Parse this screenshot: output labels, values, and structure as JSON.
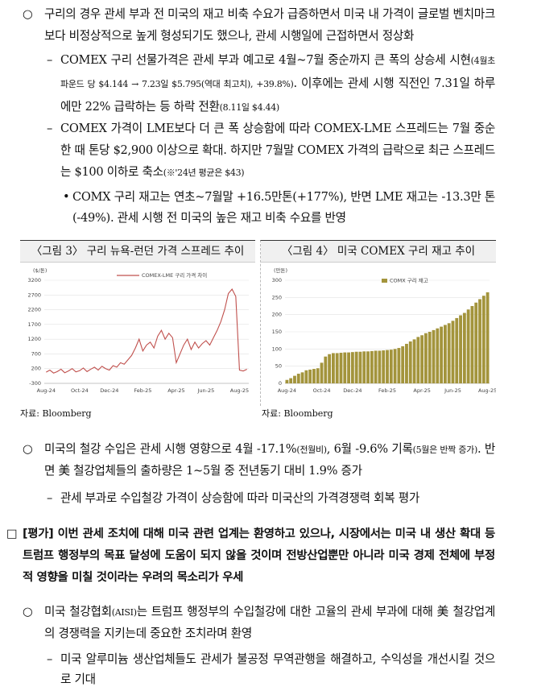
{
  "paragraphs": [
    {
      "marker": "○",
      "runs": [
        {
          "text": "구리의 경우 관세 부과 전 미국의 재고 비축 수요가 급증하면서 미국 내 가격이 글로벌 벤치마크보다 비정상적으로 높게 형성되기도 했으나, 관세 시행일에 근접하면서 정상화"
        }
      ]
    },
    {
      "marker": "–",
      "runs": [
        {
          "text": "COMEX 구리 선물가격은 관세 부과 예고로 4월~7월 중순까지 큰 폭의 상승세 시현"
        },
        {
          "text": "(4월초 파운드 당 $4.144 → 7.23일 $5.795(역대 최고치), +39.8%)",
          "small": true
        },
        {
          "text": ". 이후에는 관세 시행 직전인 7.31일 하루에만 22% 급락하는 등 하락 전환"
        },
        {
          "text": "(8.11일 $4.44)",
          "small": true
        }
      ]
    },
    {
      "marker": "–",
      "runs": [
        {
          "text": "COMEX 가격이 LME보다 더 큰 폭 상승함에 따라 COMEX-LME 스프레드는 7월 중순 한 때 톤당 $2,900 이상으로 확대. 하지만 7월말 COMEX 가격의 급락으로 최근 스프레드는 $100 이하로 축소"
        },
        {
          "text": "(※'24년 평균은 $43)",
          "small": true
        }
      ]
    },
    {
      "marker": "•",
      "runs": [
        {
          "text": "COMX 구리 재고는 연초~7월말 +16.5만톤(+177%), 반면 LME 재고는 -13.3만 톤(-49%). 관세 시행 전 미국의 높은 재고 비축 수요를 반영"
        }
      ]
    },
    {
      "marker": "○",
      "runs": [
        {
          "text": "미국의 철강 수입은 관세 시행 영향으로 4월 -17.1%"
        },
        {
          "text": "(전월비)",
          "small": true
        },
        {
          "text": ", 6월 -9.6% 기록"
        },
        {
          "text": "(5월은 반짝 증가)",
          "small": true
        },
        {
          "text": ". 반면 美 철강업체들의 출하량은 1~5월 중 전년동기 대비 1.9% 증가"
        }
      ]
    },
    {
      "marker": "–",
      "runs": [
        {
          "text": "관세 부과로 수입철강 가격이 상승함에 따라 미국산의 가격경쟁력 회복 평가"
        }
      ]
    },
    {
      "marker": "□",
      "runs": [
        {
          "text": "[평가] 이번 관세 조치에 대해 미국 관련 업계는 환영하고 있으나, 시장에서는 미국 내 생산 확대 등 트럼프 행정부의 목표 달성에 도움이 되지 않을 것이며 전방산업뿐만 아니라 미국 경제 전체에 부정적 영향을 미칠 것이라는 우려의 목소리가 우세"
        }
      ]
    },
    {
      "marker": "○",
      "runs": [
        {
          "text": "미국 철강협회"
        },
        {
          "text": "(AISI)",
          "small": true
        },
        {
          "text": "는 트럼프 행정부의 수입철강에 대한 고율의 관세 부과에 대해 美 철강업계의 경쟁력을 지키는데 중요한 조치라며 환영"
        }
      ]
    },
    {
      "marker": "–",
      "runs": [
        {
          "text": "미국 알루미늄 생산업체들도 관세가 불공정 무역관행을 해결하고, 수익성을 개선시킬 것으로 기대"
        }
      ]
    }
  ],
  "chart_data": [
    {
      "type": "line",
      "title": "〈그림 3〉 구리 뉴욕-런던 가격 스프레드 추이",
      "source": "자료: Bloomberg",
      "y_label": "($/톤)",
      "categories": [
        "Aug-24",
        null,
        null,
        null,
        null,
        null,
        null,
        null,
        null,
        "Oct-24",
        null,
        null,
        null,
        null,
        null,
        null,
        null,
        "Dec-24",
        null,
        null,
        null,
        null,
        null,
        null,
        null,
        null,
        "Feb-25",
        null,
        null,
        null,
        null,
        null,
        null,
        null,
        null,
        "Apr-25",
        null,
        null,
        null,
        null,
        null,
        null,
        null,
        "Jun-25",
        null,
        null,
        null,
        null,
        null,
        null,
        null,
        null,
        "Aug-25",
        null,
        null
      ],
      "series": [
        {
          "name": "COMEX-LME 구리 가격 차이",
          "color": "#c0504d",
          "values": [
            80,
            150,
            50,
            100,
            180,
            60,
            120,
            200,
            90,
            130,
            220,
            100,
            180,
            250,
            150,
            280,
            200,
            150,
            300,
            250,
            400,
            350,
            500,
            650,
            900,
            1200,
            800,
            1000,
            1100,
            900,
            1300,
            1500,
            1200,
            1400,
            1250,
            400,
            700,
            1000,
            1200,
            850,
            1100,
            900,
            1050,
            1150,
            1000,
            1250,
            1500,
            1800,
            2200,
            2750,
            2900,
            2650,
            150,
            120,
            180
          ]
        }
      ],
      "ylim": [
        -300,
        3200
      ],
      "yticks": [
        -300,
        200,
        700,
        1200,
        1700,
        2200,
        2700,
        3200
      ],
      "grid": true
    },
    {
      "type": "bar",
      "title": "〈그림 4〉 미국 COMEX 구리 재고 추이",
      "source": "자료: Bloomberg",
      "y_label": "(만톤)",
      "categories": [
        "Aug-24",
        null,
        null,
        null,
        null,
        null,
        null,
        null,
        null,
        "Oct-24",
        null,
        null,
        null,
        null,
        null,
        null,
        null,
        "Dec-24",
        null,
        null,
        null,
        null,
        null,
        null,
        null,
        null,
        "Feb-25",
        null,
        null,
        null,
        null,
        null,
        null,
        null,
        null,
        "Apr-25",
        null,
        null,
        null,
        null,
        null,
        null,
        null,
        "Jun-25",
        null,
        null,
        null,
        null,
        null,
        null,
        null,
        null,
        "Aug-25"
      ],
      "series": [
        {
          "name": "COMX 구리 재고",
          "color": "#a3943c",
          "values": [
            10,
            15,
            22,
            28,
            32,
            38,
            40,
            42,
            44,
            60,
            78,
            85,
            88,
            88,
            89,
            90,
            90,
            91,
            92,
            92,
            93,
            93,
            94,
            95,
            95,
            96,
            97,
            98,
            100,
            103,
            108,
            115,
            122,
            128,
            135,
            140,
            146,
            150,
            155,
            160,
            165,
            170,
            175,
            182,
            190,
            198,
            205,
            215,
            225,
            235,
            245,
            255,
            265
          ]
        }
      ],
      "ylim": [
        0,
        300
      ],
      "yticks": [
        0,
        50,
        100,
        150,
        200,
        250,
        300
      ],
      "grid": true
    }
  ]
}
